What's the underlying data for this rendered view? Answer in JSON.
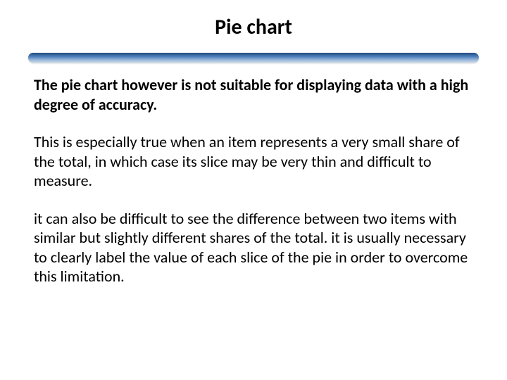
{
  "slide": {
    "title": "Pie chart",
    "paragraphs": {
      "p1": "The pie chart however is not suitable for displaying data with a high degree of accuracy.",
      "p2": "This is especially true when an item represents a very small share of the total, in which case its slice may be very thin and difficult to measure.",
      "p3": "it can also be difficult to see the difference between two items with similar but slightly different shares of the total. it is usually necessary to clearly label the value of each slice of the pie in order to overcome this limitation."
    }
  },
  "styling": {
    "title_fontsize": 30,
    "title_color": "#000000",
    "body_fontsize": 22,
    "body_color": "#000000",
    "background_color": "#ffffff",
    "divider_gradient": [
      "#1f497d",
      "#4f81bd",
      "#95b3d7",
      "#c8d8ec"
    ],
    "divider_width": 640,
    "divider_height": 14,
    "paragraph_spacing": 26,
    "line_height": 1.25,
    "p1_font_weight": "bold",
    "p2_font_weight": "normal",
    "p3_font_weight": "normal"
  }
}
